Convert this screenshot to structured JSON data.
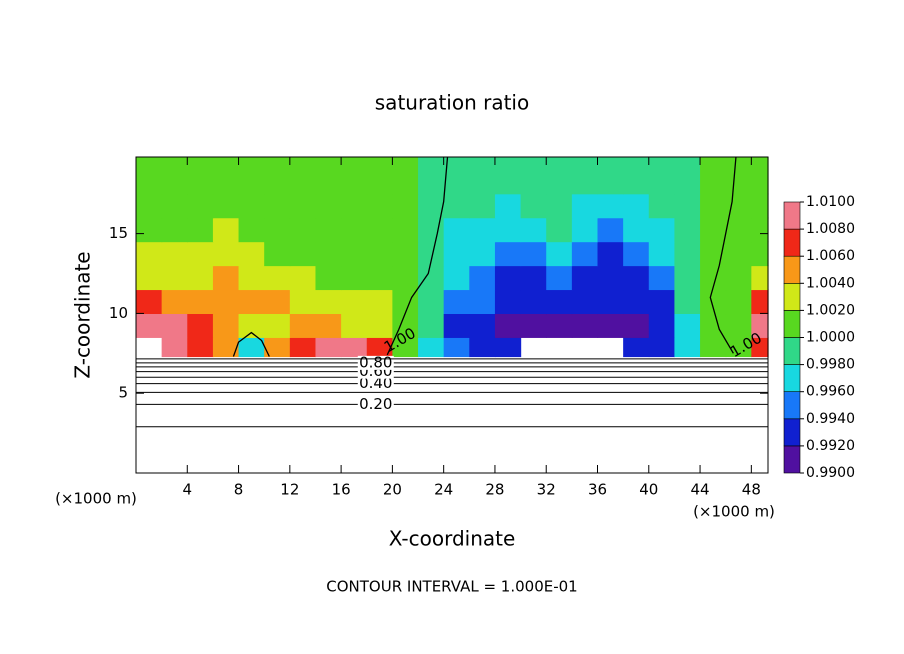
{
  "chart_data": {
    "type": "contour",
    "title": "saturation ratio",
    "x_label": "X-coordinate",
    "y_label": "Z-coordinate",
    "x_unit": "(×1000 m)",
    "footnote": "CONTOUR INTERVAL = 1.000E-01",
    "xlim": [
      0,
      49.3
    ],
    "ylim": [
      0,
      19.8
    ],
    "xticks": [
      4,
      8,
      12,
      16,
      20,
      24,
      28,
      32,
      36,
      40,
      44,
      48
    ],
    "yticks": [
      5,
      10,
      15
    ],
    "field": {
      "x_edges": [
        0,
        2,
        4,
        6,
        8,
        10,
        12,
        14,
        16,
        18,
        20,
        22,
        24,
        26,
        28,
        30,
        32,
        34,
        36,
        38,
        40,
        42,
        44,
        46,
        48,
        49.3
      ],
      "z_edges": [
        7.3,
        8.5,
        10,
        11.5,
        13,
        14.5,
        16,
        17.5,
        19.8
      ],
      "values": [
        [
          null,
          1.008,
          1.006,
          1.004,
          0.996,
          1.004,
          1.007,
          1.008,
          1.008,
          1.006,
          1.001,
          0.997,
          0.994,
          0.993,
          0.992,
          null,
          null,
          null,
          null,
          0.992,
          0.992,
          0.996,
          1.0,
          1.001,
          1.006
        ],
        [
          1.008,
          1.008,
          1.006,
          1.004,
          1.002,
          1.003,
          1.005,
          1.004,
          1.003,
          1.002,
          1.001,
          0.998,
          0.993,
          0.993,
          0.991,
          0.99,
          0.991,
          0.991,
          0.991,
          0.991,
          0.992,
          0.996,
          1.0,
          1.0,
          1.008
        ],
        [
          1.006,
          1.004,
          1.004,
          1.005,
          1.005,
          1.004,
          1.002,
          1.002,
          1.003,
          1.002,
          1.001,
          0.999,
          0.995,
          0.994,
          0.992,
          0.992,
          0.992,
          0.993,
          0.992,
          0.992,
          0.993,
          0.998,
          1.0,
          1.0,
          1.006
        ],
        [
          1.003,
          1.003,
          1.003,
          1.004,
          1.003,
          1.003,
          1.002,
          1.001,
          1.001,
          1.001,
          1.0,
          0.999,
          0.996,
          0.995,
          0.993,
          0.993,
          0.994,
          0.993,
          0.992,
          0.993,
          0.995,
          0.998,
          1.0,
          1.001,
          1.002
        ],
        [
          1.002,
          1.002,
          1.002,
          1.002,
          1.002,
          1.001,
          1.001,
          1.001,
          1.0,
          1.001,
          1.0,
          0.999,
          0.997,
          0.996,
          0.994,
          0.995,
          0.996,
          0.994,
          0.993,
          0.994,
          0.996,
          0.998,
          1.0,
          1.0,
          1.001
        ],
        [
          1.001,
          1.001,
          1.001,
          1.002,
          1.001,
          1.001,
          1.0,
          1.001,
          1.001,
          1.001,
          1.0,
          0.999,
          0.997,
          0.997,
          0.996,
          0.997,
          0.998,
          0.996,
          0.995,
          0.996,
          0.997,
          0.999,
          1.0,
          1.0,
          1.0
        ],
        [
          1.001,
          1.001,
          1.001,
          1.001,
          1.001,
          1.001,
          1.0,
          1.001,
          1.001,
          1.001,
          1.0,
          0.999,
          0.998,
          0.998,
          0.997,
          0.998,
          0.998,
          0.997,
          0.997,
          0.997,
          0.998,
          0.999,
          1.0,
          1.0,
          1.001
        ],
        [
          1.001,
          1.001,
          1.001,
          1.001,
          1.001,
          1.001,
          1.001,
          1.001,
          1.001,
          1.001,
          1.0,
          0.999,
          0.999,
          0.998,
          0.998,
          0.998,
          0.998,
          0.998,
          0.998,
          0.998,
          0.999,
          0.999,
          1.0,
          1.0,
          1.001
        ]
      ]
    },
    "colorbar": {
      "ticks": [
        {
          "value": 0.99,
          "label": "0.9900"
        },
        {
          "value": 0.992,
          "label": "0.9920"
        },
        {
          "value": 0.994,
          "label": "0.9940"
        },
        {
          "value": 0.996,
          "label": "0.9960"
        },
        {
          "value": 0.998,
          "label": "0.9980"
        },
        {
          "value": 1.0,
          "label": "1.0000"
        },
        {
          "value": 1.002,
          "label": "1.0020"
        },
        {
          "value": 1.004,
          "label": "1.0040"
        },
        {
          "value": 1.006,
          "label": "1.0060"
        },
        {
          "value": 1.008,
          "label": "1.0080"
        },
        {
          "value": 1.01,
          "label": "1.0100"
        }
      ],
      "colors": [
        "#5010a0",
        "#1020d0",
        "#1878f8",
        "#18d8e0",
        "#30d888",
        "#58d820",
        "#d0e818",
        "#f89818",
        "#f02818",
        "#f07888"
      ]
    },
    "contours": [
      {
        "z": 2.9
      },
      {
        "z": 4.3,
        "label": "0.20"
      },
      {
        "z": 5.05
      },
      {
        "z": 5.6,
        "label": "0.40"
      },
      {
        "z": 6.0
      },
      {
        "z": 6.35,
        "label": "0.60"
      },
      {
        "z": 6.65
      },
      {
        "z": 6.9,
        "label": "0.80"
      },
      {
        "z": 7.15
      }
    ],
    "contour_one": {
      "label": "1.00",
      "x": [
        19.6,
        20.5,
        21.5,
        22.8,
        23.5,
        24.0,
        24.3,
        null,
        46.6,
        45.5,
        44.8,
        45.5,
        46.0,
        46.5,
        46.8,
        null,
        7.6,
        8.0,
        9.0,
        9.8,
        10.4
      ],
      "z": [
        7.4,
        9.0,
        11.0,
        12.5,
        15.0,
        17.0,
        19.8,
        null,
        7.5,
        9.0,
        11.0,
        13.0,
        15.0,
        17.0,
        19.8,
        null,
        7.3,
        8.2,
        8.8,
        8.3,
        7.3
      ],
      "label_at": [
        [
          20.6,
          8.3
        ],
        [
          47.6,
          8.0
        ]
      ]
    }
  }
}
